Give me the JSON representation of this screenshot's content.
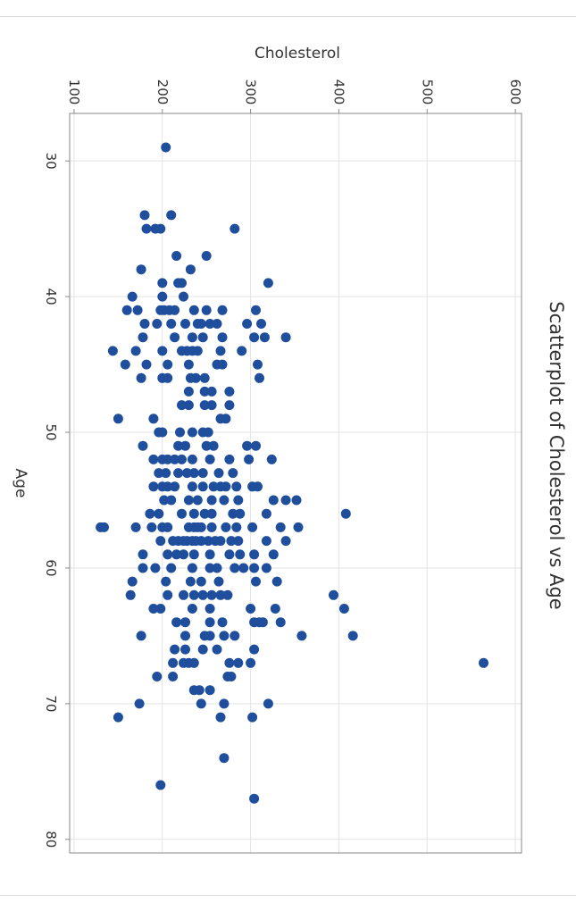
{
  "chart_data": {
    "type": "scatter",
    "title": "Scatterplot of Cholesterol vs Age",
    "xlabel": "Age",
    "ylabel": "Cholesterol",
    "xlim": [
      26.5,
      81
    ],
    "ylim": [
      95,
      607
    ],
    "xticks": [
      30,
      40,
      50,
      60,
      70,
      80
    ],
    "yticks": [
      100,
      200,
      300,
      400,
      500,
      600
    ],
    "grid": true,
    "marker_color": "#1f4e9c",
    "orientation": "rotated 90 degrees clockwise",
    "series": [
      {
        "points": [
          {
            "x": 29,
            "y": 204
          },
          {
            "x": 34,
            "y": 180
          },
          {
            "x": 34,
            "y": 210
          },
          {
            "x": 35,
            "y": 182
          },
          {
            "x": 35,
            "y": 192
          },
          {
            "x": 35,
            "y": 198
          },
          {
            "x": 35,
            "y": 282
          },
          {
            "x": 37,
            "y": 216
          },
          {
            "x": 37,
            "y": 250
          },
          {
            "x": 38,
            "y": 176
          },
          {
            "x": 38,
            "y": 232
          },
          {
            "x": 39,
            "y": 200
          },
          {
            "x": 39,
            "y": 218
          },
          {
            "x": 39,
            "y": 222
          },
          {
            "x": 39,
            "y": 320
          },
          {
            "x": 40,
            "y": 166
          },
          {
            "x": 40,
            "y": 200
          },
          {
            "x": 40,
            "y": 224
          },
          {
            "x": 41,
            "y": 160
          },
          {
            "x": 41,
            "y": 172
          },
          {
            "x": 41,
            "y": 198
          },
          {
            "x": 41,
            "y": 202
          },
          {
            "x": 41,
            "y": 208
          },
          {
            "x": 41,
            "y": 214
          },
          {
            "x": 41,
            "y": 236
          },
          {
            "x": 41,
            "y": 250
          },
          {
            "x": 41,
            "y": 268
          },
          {
            "x": 41,
            "y": 306
          },
          {
            "x": 42,
            "y": 180
          },
          {
            "x": 42,
            "y": 194
          },
          {
            "x": 42,
            "y": 210
          },
          {
            "x": 42,
            "y": 226
          },
          {
            "x": 42,
            "y": 240
          },
          {
            "x": 42,
            "y": 244
          },
          {
            "x": 42,
            "y": 254
          },
          {
            "x": 42,
            "y": 262
          },
          {
            "x": 42,
            "y": 296
          },
          {
            "x": 42,
            "y": 312
          },
          {
            "x": 43,
            "y": 178
          },
          {
            "x": 43,
            "y": 214
          },
          {
            "x": 43,
            "y": 234
          },
          {
            "x": 43,
            "y": 246
          },
          {
            "x": 43,
            "y": 268
          },
          {
            "x": 43,
            "y": 304
          },
          {
            "x": 43,
            "y": 316
          },
          {
            "x": 43,
            "y": 340
          },
          {
            "x": 44,
            "y": 144
          },
          {
            "x": 44,
            "y": 170
          },
          {
            "x": 44,
            "y": 200
          },
          {
            "x": 44,
            "y": 222
          },
          {
            "x": 44,
            "y": 228
          },
          {
            "x": 44,
            "y": 234
          },
          {
            "x": 44,
            "y": 240
          },
          {
            "x": 44,
            "y": 266
          },
          {
            "x": 44,
            "y": 290
          },
          {
            "x": 45,
            "y": 158
          },
          {
            "x": 45,
            "y": 182
          },
          {
            "x": 45,
            "y": 206
          },
          {
            "x": 45,
            "y": 230
          },
          {
            "x": 45,
            "y": 262
          },
          {
            "x": 45,
            "y": 268
          },
          {
            "x": 45,
            "y": 308
          },
          {
            "x": 46,
            "y": 176
          },
          {
            "x": 46,
            "y": 200
          },
          {
            "x": 46,
            "y": 206
          },
          {
            "x": 46,
            "y": 232
          },
          {
            "x": 46,
            "y": 238
          },
          {
            "x": 46,
            "y": 248
          },
          {
            "x": 46,
            "y": 310
          },
          {
            "x": 47,
            "y": 230
          },
          {
            "x": 47,
            "y": 248
          },
          {
            "x": 47,
            "y": 256
          },
          {
            "x": 47,
            "y": 276
          },
          {
            "x": 48,
            "y": 222
          },
          {
            "x": 48,
            "y": 230
          },
          {
            "x": 48,
            "y": 248
          },
          {
            "x": 48,
            "y": 256
          },
          {
            "x": 48,
            "y": 276
          },
          {
            "x": 49,
            "y": 150
          },
          {
            "x": 49,
            "y": 190
          },
          {
            "x": 49,
            "y": 266
          },
          {
            "x": 49,
            "y": 272
          },
          {
            "x": 50,
            "y": 196
          },
          {
            "x": 50,
            "y": 200
          },
          {
            "x": 50,
            "y": 220
          },
          {
            "x": 50,
            "y": 234
          },
          {
            "x": 50,
            "y": 246
          },
          {
            "x": 50,
            "y": 252
          },
          {
            "x": 51,
            "y": 178
          },
          {
            "x": 51,
            "y": 218
          },
          {
            "x": 51,
            "y": 226
          },
          {
            "x": 51,
            "y": 250
          },
          {
            "x": 51,
            "y": 258
          },
          {
            "x": 51,
            "y": 296
          },
          {
            "x": 51,
            "y": 306
          },
          {
            "x": 52,
            "y": 190
          },
          {
            "x": 52,
            "y": 200
          },
          {
            "x": 52,
            "y": 206
          },
          {
            "x": 52,
            "y": 214
          },
          {
            "x": 52,
            "y": 222
          },
          {
            "x": 52,
            "y": 234
          },
          {
            "x": 52,
            "y": 254
          },
          {
            "x": 52,
            "y": 276
          },
          {
            "x": 52,
            "y": 298
          },
          {
            "x": 52,
            "y": 324
          },
          {
            "x": 53,
            "y": 196
          },
          {
            "x": 53,
            "y": 204
          },
          {
            "x": 53,
            "y": 218
          },
          {
            "x": 53,
            "y": 228
          },
          {
            "x": 53,
            "y": 236
          },
          {
            "x": 53,
            "y": 246
          },
          {
            "x": 53,
            "y": 264
          },
          {
            "x": 53,
            "y": 280
          },
          {
            "x": 54,
            "y": 190
          },
          {
            "x": 54,
            "y": 200
          },
          {
            "x": 54,
            "y": 206
          },
          {
            "x": 54,
            "y": 214
          },
          {
            "x": 54,
            "y": 234
          },
          {
            "x": 54,
            "y": 246
          },
          {
            "x": 54,
            "y": 258
          },
          {
            "x": 54,
            "y": 266
          },
          {
            "x": 54,
            "y": 272
          },
          {
            "x": 54,
            "y": 284
          },
          {
            "x": 54,
            "y": 302
          },
          {
            "x": 54,
            "y": 308
          },
          {
            "x": 55,
            "y": 202
          },
          {
            "x": 55,
            "y": 210
          },
          {
            "x": 55,
            "y": 230
          },
          {
            "x": 55,
            "y": 240
          },
          {
            "x": 55,
            "y": 256
          },
          {
            "x": 55,
            "y": 270
          },
          {
            "x": 55,
            "y": 286
          },
          {
            "x": 55,
            "y": 326
          },
          {
            "x": 55,
            "y": 340
          },
          {
            "x": 55,
            "y": 352
          },
          {
            "x": 56,
            "y": 186
          },
          {
            "x": 56,
            "y": 196
          },
          {
            "x": 56,
            "y": 222
          },
          {
            "x": 56,
            "y": 236
          },
          {
            "x": 56,
            "y": 248
          },
          {
            "x": 56,
            "y": 256
          },
          {
            "x": 56,
            "y": 280
          },
          {
            "x": 56,
            "y": 288
          },
          {
            "x": 56,
            "y": 318
          },
          {
            "x": 56,
            "y": 408
          },
          {
            "x": 57,
            "y": 130
          },
          {
            "x": 57,
            "y": 134
          },
          {
            "x": 57,
            "y": 170
          },
          {
            "x": 57,
            "y": 188
          },
          {
            "x": 57,
            "y": 200
          },
          {
            "x": 57,
            "y": 206
          },
          {
            "x": 57,
            "y": 230
          },
          {
            "x": 57,
            "y": 236
          },
          {
            "x": 57,
            "y": 240
          },
          {
            "x": 57,
            "y": 244
          },
          {
            "x": 57,
            "y": 256
          },
          {
            "x": 57,
            "y": 272
          },
          {
            "x": 57,
            "y": 284
          },
          {
            "x": 57,
            "y": 302
          },
          {
            "x": 57,
            "y": 334
          },
          {
            "x": 57,
            "y": 354
          },
          {
            "x": 58,
            "y": 198
          },
          {
            "x": 58,
            "y": 212
          },
          {
            "x": 58,
            "y": 218
          },
          {
            "x": 58,
            "y": 224
          },
          {
            "x": 58,
            "y": 228
          },
          {
            "x": 58,
            "y": 234
          },
          {
            "x": 58,
            "y": 238
          },
          {
            "x": 58,
            "y": 244
          },
          {
            "x": 58,
            "y": 252
          },
          {
            "x": 58,
            "y": 260
          },
          {
            "x": 58,
            "y": 266
          },
          {
            "x": 58,
            "y": 278
          },
          {
            "x": 58,
            "y": 286
          },
          {
            "x": 58,
            "y": 318
          },
          {
            "x": 58,
            "y": 340
          },
          {
            "x": 59,
            "y": 178
          },
          {
            "x": 59,
            "y": 206
          },
          {
            "x": 59,
            "y": 216
          },
          {
            "x": 59,
            "y": 224
          },
          {
            "x": 59,
            "y": 236
          },
          {
            "x": 59,
            "y": 254
          },
          {
            "x": 59,
            "y": 276
          },
          {
            "x": 59,
            "y": 288
          },
          {
            "x": 59,
            "y": 304
          },
          {
            "x": 59,
            "y": 326
          },
          {
            "x": 60,
            "y": 178
          },
          {
            "x": 60,
            "y": 192
          },
          {
            "x": 60,
            "y": 210
          },
          {
            "x": 60,
            "y": 234
          },
          {
            "x": 60,
            "y": 254
          },
          {
            "x": 60,
            "y": 262
          },
          {
            "x": 60,
            "y": 282
          },
          {
            "x": 60,
            "y": 292
          },
          {
            "x": 60,
            "y": 304
          },
          {
            "x": 60,
            "y": 318
          },
          {
            "x": 61,
            "y": 166
          },
          {
            "x": 61,
            "y": 204
          },
          {
            "x": 61,
            "y": 232
          },
          {
            "x": 61,
            "y": 244
          },
          {
            "x": 61,
            "y": 264
          },
          {
            "x": 61,
            "y": 306
          },
          {
            "x": 61,
            "y": 330
          },
          {
            "x": 62,
            "y": 164
          },
          {
            "x": 62,
            "y": 206
          },
          {
            "x": 62,
            "y": 224
          },
          {
            "x": 62,
            "y": 236
          },
          {
            "x": 62,
            "y": 246
          },
          {
            "x": 62,
            "y": 256
          },
          {
            "x": 62,
            "y": 266
          },
          {
            "x": 62,
            "y": 274
          },
          {
            "x": 62,
            "y": 394
          },
          {
            "x": 63,
            "y": 190
          },
          {
            "x": 63,
            "y": 198
          },
          {
            "x": 63,
            "y": 234
          },
          {
            "x": 63,
            "y": 254
          },
          {
            "x": 63,
            "y": 300
          },
          {
            "x": 63,
            "y": 328
          },
          {
            "x": 63,
            "y": 406
          },
          {
            "x": 64,
            "y": 216
          },
          {
            "x": 64,
            "y": 226
          },
          {
            "x": 64,
            "y": 254
          },
          {
            "x": 64,
            "y": 268
          },
          {
            "x": 64,
            "y": 304
          },
          {
            "x": 64,
            "y": 310
          },
          {
            "x": 64,
            "y": 314
          },
          {
            "x": 64,
            "y": 334
          },
          {
            "x": 65,
            "y": 176
          },
          {
            "x": 65,
            "y": 226
          },
          {
            "x": 65,
            "y": 248
          },
          {
            "x": 65,
            "y": 254
          },
          {
            "x": 65,
            "y": 270
          },
          {
            "x": 65,
            "y": 282
          },
          {
            "x": 65,
            "y": 358
          },
          {
            "x": 65,
            "y": 416
          },
          {
            "x": 66,
            "y": 214
          },
          {
            "x": 66,
            "y": 226
          },
          {
            "x": 66,
            "y": 246
          },
          {
            "x": 66,
            "y": 262
          },
          {
            "x": 66,
            "y": 304
          },
          {
            "x": 67,
            "y": 212
          },
          {
            "x": 67,
            "y": 224
          },
          {
            "x": 67,
            "y": 230
          },
          {
            "x": 67,
            "y": 236
          },
          {
            "x": 67,
            "y": 276
          },
          {
            "x": 67,
            "y": 286
          },
          {
            "x": 67,
            "y": 300
          },
          {
            "x": 67,
            "y": 564
          },
          {
            "x": 68,
            "y": 194
          },
          {
            "x": 68,
            "y": 212
          },
          {
            "x": 68,
            "y": 274
          },
          {
            "x": 68,
            "y": 278
          },
          {
            "x": 69,
            "y": 236
          },
          {
            "x": 69,
            "y": 242
          },
          {
            "x": 69,
            "y": 254
          },
          {
            "x": 70,
            "y": 174
          },
          {
            "x": 70,
            "y": 244
          },
          {
            "x": 70,
            "y": 270
          },
          {
            "x": 70,
            "y": 320
          },
          {
            "x": 71,
            "y": 150
          },
          {
            "x": 71,
            "y": 266
          },
          {
            "x": 71,
            "y": 302
          },
          {
            "x": 74,
            "y": 270
          },
          {
            "x": 76,
            "y": 198
          },
          {
            "x": 77,
            "y": 304
          }
        ]
      }
    ]
  }
}
